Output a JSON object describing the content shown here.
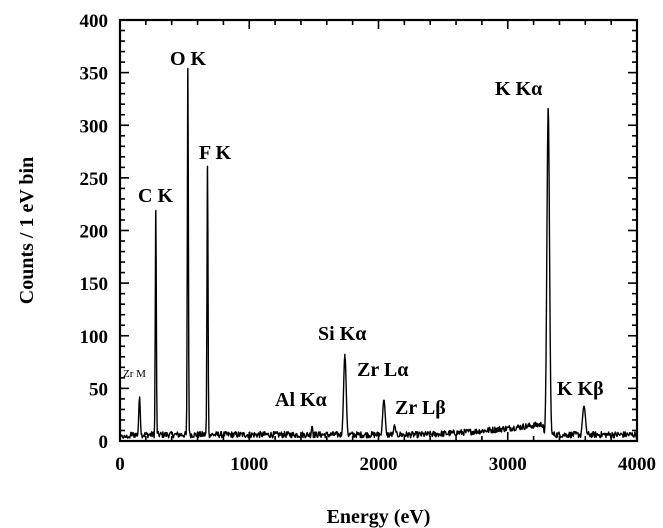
{
  "chart_data": {
    "type": "line",
    "xlabel": "Energy (eV)",
    "ylabel": "Counts / 1 eV bin",
    "xlim": [
      0,
      4000
    ],
    "ylim": [
      0,
      400
    ],
    "x_ticks": [
      0,
      1000,
      2000,
      3000,
      4000
    ],
    "y_ticks": [
      0,
      50,
      100,
      150,
      200,
      250,
      300,
      350,
      400
    ],
    "grid": false,
    "line_color": "#000000",
    "background_level": 6,
    "peaks": [
      {
        "label": "Zr M",
        "x": 151,
        "y": 40,
        "width": 6
      },
      {
        "label": "C K",
        "x": 277,
        "y": 219,
        "width": 4
      },
      {
        "label": "O K",
        "x": 525,
        "y": 354,
        "width": 4
      },
      {
        "label": "F K",
        "x": 677,
        "y": 261,
        "width": 4
      },
      {
        "label": "Al Kα",
        "x": 1486,
        "y": 12,
        "width": 6
      },
      {
        "label": "Si Kα",
        "x": 1740,
        "y": 80,
        "width": 10
      },
      {
        "label": "Zr Lα",
        "x": 2042,
        "y": 37,
        "width": 10
      },
      {
        "label": "Zr Lβ",
        "x": 2124,
        "y": 13,
        "width": 8
      },
      {
        "label": "K Kα",
        "x": 3313,
        "y": 315,
        "width": 10
      },
      {
        "label": "K Kβ",
        "x": 3590,
        "y": 31,
        "width": 12
      }
    ],
    "annotations": [
      "Zr M",
      "C K",
      "O K",
      "F K",
      "Al Kα",
      "Si Kα",
      "Zr Lα",
      "Zr Lβ",
      "K Kα",
      "K Kβ"
    ]
  }
}
